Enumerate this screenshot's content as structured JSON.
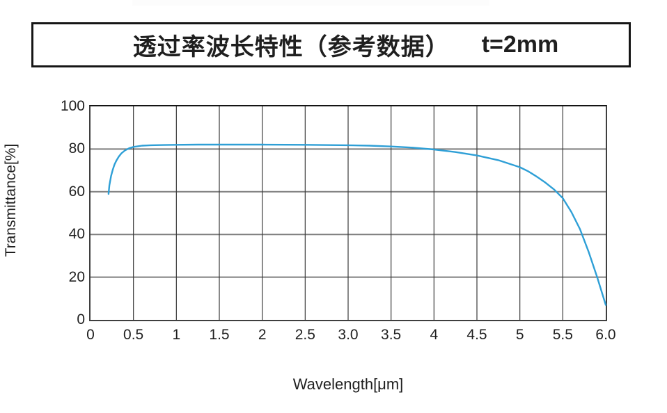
{
  "title": {
    "main": "透过率波长特性（参考数据）",
    "suffix": "t=2mm"
  },
  "chart_data": {
    "type": "line",
    "title": "透过率波长特性（参考数据） t=2mm",
    "xlabel": "Wavelength[μm]",
    "ylabel": "Transmittance[%]",
    "xlim": [
      0,
      6
    ],
    "ylim": [
      0,
      100
    ],
    "grid": true,
    "legend": "none",
    "x_ticks": [
      {
        "value": 0,
        "label": "0"
      },
      {
        "value": 0.5,
        "label": "0.5"
      },
      {
        "value": 1,
        "label": "1"
      },
      {
        "value": 1.5,
        "label": "1.5"
      },
      {
        "value": 2,
        "label": "2"
      },
      {
        "value": 2.5,
        "label": "2.5"
      },
      {
        "value": 3,
        "label": "3.0"
      },
      {
        "value": 3.5,
        "label": "3.5"
      },
      {
        "value": 4,
        "label": "4"
      },
      {
        "value": 4.5,
        "label": "4.5"
      },
      {
        "value": 5,
        "label": "5"
      },
      {
        "value": 5.5,
        "label": "5.5"
      },
      {
        "value": 6,
        "label": "6.0"
      }
    ],
    "y_ticks": [
      {
        "value": 0,
        "label": "0"
      },
      {
        "value": 20,
        "label": "20"
      },
      {
        "value": 40,
        "label": "40"
      },
      {
        "value": 60,
        "label": "60"
      },
      {
        "value": 80,
        "label": "80"
      },
      {
        "value": 100,
        "label": "100"
      }
    ],
    "series": [
      {
        "name": "transmittance",
        "color": "#2e9fd6",
        "points": [
          [
            0.21,
            59
          ],
          [
            0.22,
            63
          ],
          [
            0.24,
            67.5
          ],
          [
            0.26,
            70.5
          ],
          [
            0.28,
            72.8
          ],
          [
            0.3,
            74.5
          ],
          [
            0.33,
            76.5
          ],
          [
            0.36,
            78
          ],
          [
            0.4,
            79.3
          ],
          [
            0.45,
            80.4
          ],
          [
            0.5,
            81
          ],
          [
            0.6,
            81.6
          ],
          [
            0.7,
            81.8
          ],
          [
            0.85,
            81.9
          ],
          [
            1.0,
            82
          ],
          [
            1.25,
            82.1
          ],
          [
            1.5,
            82.1
          ],
          [
            2.0,
            82.1
          ],
          [
            2.5,
            82
          ],
          [
            3.0,
            81.8
          ],
          [
            3.25,
            81.6
          ],
          [
            3.5,
            81.2
          ],
          [
            3.75,
            80.7
          ],
          [
            4.0,
            79.8
          ],
          [
            4.25,
            78.6
          ],
          [
            4.5,
            77
          ],
          [
            4.75,
            74.8
          ],
          [
            5.0,
            71.5
          ],
          [
            5.1,
            69.5
          ],
          [
            5.2,
            67
          ],
          [
            5.3,
            64.2
          ],
          [
            5.4,
            61
          ],
          [
            5.5,
            57
          ],
          [
            5.6,
            50.5
          ],
          [
            5.7,
            42.5
          ],
          [
            5.8,
            32
          ],
          [
            5.9,
            20
          ],
          [
            6.0,
            7
          ]
        ]
      }
    ]
  },
  "colors": {
    "curve": "#2e9fd6",
    "grid_horizontal": "#7d7d7d",
    "grid_vertical": "#3a3a3a",
    "plot_border": "#3f3f3f",
    "title_border": "#161616",
    "text": "#1f1f1f",
    "background": "#ffffff"
  }
}
